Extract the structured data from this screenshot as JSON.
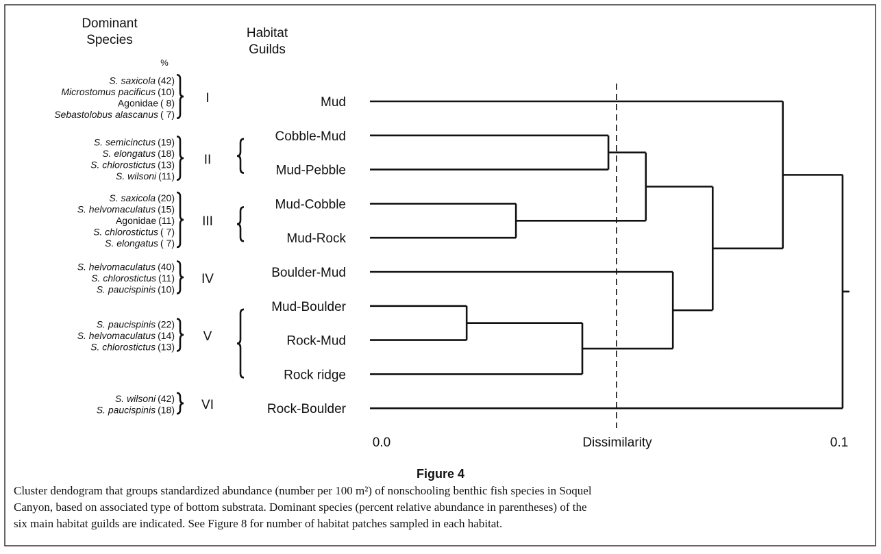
{
  "figure": {
    "header_species": [
      "Dominant",
      "Species"
    ],
    "header_percent": "%",
    "header_guilds": [
      "Habitat",
      "Guilds"
    ],
    "guilds": [
      {
        "numeral": "I",
        "species": [
          {
            "name": "S. saxicola",
            "italic": true,
            "abundance": "(42)"
          },
          {
            "name": "Microstomus pacificus",
            "italic": true,
            "abundance": "(10)"
          },
          {
            "name": "Agonidae",
            "italic": false,
            "abundance": "( 8)"
          },
          {
            "name": "Sebastolobus alascanus",
            "italic": true,
            "abundance": "( 7)"
          }
        ]
      },
      {
        "numeral": "II",
        "species": [
          {
            "name": "S. semicinctus",
            "italic": true,
            "abundance": "(19)"
          },
          {
            "name": "S. elongatus",
            "italic": true,
            "abundance": "(18)"
          },
          {
            "name": "S. chlorostictus",
            "italic": true,
            "abundance": "(13)"
          },
          {
            "name": "S. wilsoni",
            "italic": true,
            "abundance": "(11)"
          }
        ]
      },
      {
        "numeral": "III",
        "species": [
          {
            "name": "S. saxicola",
            "italic": true,
            "abundance": "(20)"
          },
          {
            "name": "S. helvomaculatus",
            "italic": true,
            "abundance": "(15)"
          },
          {
            "name": "Agonidae",
            "italic": false,
            "abundance": "(11)"
          },
          {
            "name": "S. chlorostictus",
            "italic": true,
            "abundance": "( 7)"
          },
          {
            "name": "S. elongatus",
            "italic": true,
            "abundance": "( 7)"
          }
        ]
      },
      {
        "numeral": "IV",
        "species": [
          {
            "name": "S. helvomaculatus",
            "italic": true,
            "abundance": "(40)"
          },
          {
            "name": "S. chlorostictus",
            "italic": true,
            "abundance": "(11)"
          },
          {
            "name": "S. paucispinis",
            "italic": true,
            "abundance": "(10)"
          }
        ]
      },
      {
        "numeral": "V",
        "species": [
          {
            "name": "S. paucispinis",
            "italic": true,
            "abundance": "(22)"
          },
          {
            "name": "S. helvomaculatus",
            "italic": true,
            "abundance": "(14)"
          },
          {
            "name": "S. chlorostictus",
            "italic": true,
            "abundance": "(13)"
          }
        ]
      },
      {
        "numeral": "VI",
        "species": [
          {
            "name": "S. wilsoni",
            "italic": true,
            "abundance": "(42)"
          },
          {
            "name": "S. paucispinis",
            "italic": true,
            "abundance": "(18)"
          }
        ]
      }
    ],
    "tree": {
      "height": 0.0997,
      "children": [
        {
          "height": 0.0871,
          "children": [
            {
              "label": "Mud"
            },
            {
              "height": 0.0723,
              "children": [
                {
                  "height": 0.0582,
                  "children": [
                    {
                      "height": 0.0503,
                      "children": [
                        {
                          "label": "Cobble-Mud"
                        },
                        {
                          "label": "Mud-Pebble"
                        }
                      ]
                    },
                    {
                      "height": 0.0308,
                      "children": [
                        {
                          "label": "Mud-Cobble"
                        },
                        {
                          "label": "Mud-Rock"
                        }
                      ]
                    }
                  ]
                },
                {
                  "height": 0.0639,
                  "children": [
                    {
                      "label": "Boulder-Mud"
                    },
                    {
                      "height": 0.0448,
                      "children": [
                        {
                          "height": 0.0204,
                          "children": [
                            {
                              "label": "Mud-Boulder"
                            },
                            {
                              "label": "Rock-Mud"
                            }
                          ]
                        },
                        {
                          "label": "Rock ridge"
                        }
                      ]
                    }
                  ]
                }
              ]
            }
          ]
        },
        {
          "label": "Rock-Boulder"
        }
      ]
    },
    "cut_line": 0.052,
    "xlim": [
      0,
      0.1
    ],
    "xticks": [
      {
        "value": 0,
        "label": "0.0"
      },
      {
        "value": 0.1,
        "label": "0.1"
      }
    ],
    "xlabel": "Dissimilarity",
    "figure_label": "Figure 4",
    "caption_lines": [
      "Cluster dendogram that groups standardized abundance (number per 100 m²) of nonschooling benthic fish species in Soquel",
      "Canyon, based on associated type of bottom substrata. Dominant species (percent relative abundance in parentheses) of the",
      "six main habitat guilds are indicated. See Figure 8 for number of habitat patches sampled in each habitat."
    ]
  }
}
